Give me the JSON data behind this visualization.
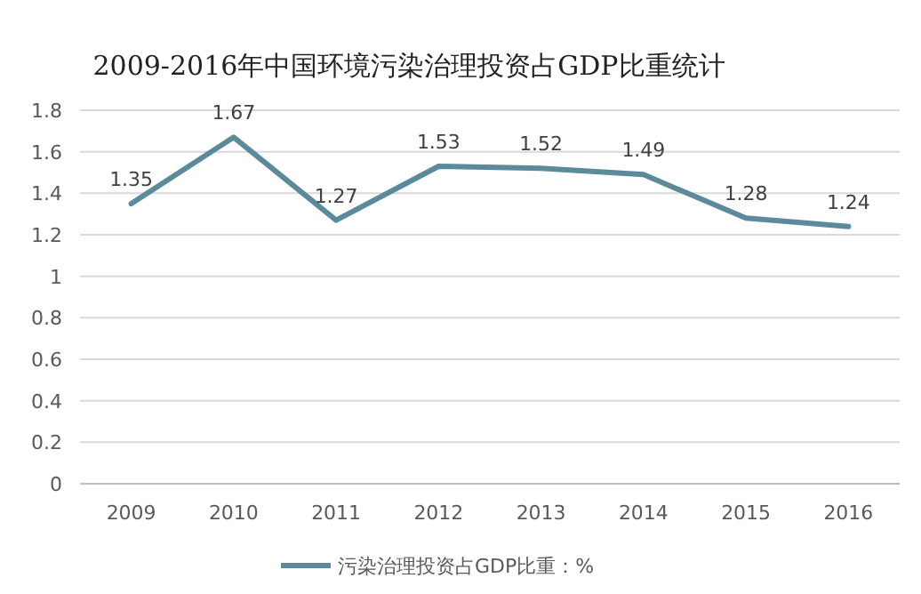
{
  "chart_data": {
    "type": "line",
    "title": "2009-2016年中国环境污染治理投资占GDP比重统计",
    "categories": [
      "2009",
      "2010",
      "2011",
      "2012",
      "2013",
      "2014",
      "2015",
      "2016"
    ],
    "series": [
      {
        "name": "污染治理投资占GDP比重：%",
        "color": "#5b8a9b",
        "values": [
          1.35,
          1.67,
          1.27,
          1.53,
          1.52,
          1.49,
          1.28,
          1.24
        ]
      }
    ],
    "ylim": [
      0,
      1.8
    ],
    "yticks": [
      0,
      0.2,
      0.4,
      0.6,
      0.8,
      1,
      1.2,
      1.4,
      1.6,
      1.8
    ],
    "grid": "y",
    "legend": "bottom",
    "data_labels": true,
    "marker": "none",
    "line_style": "solid"
  }
}
